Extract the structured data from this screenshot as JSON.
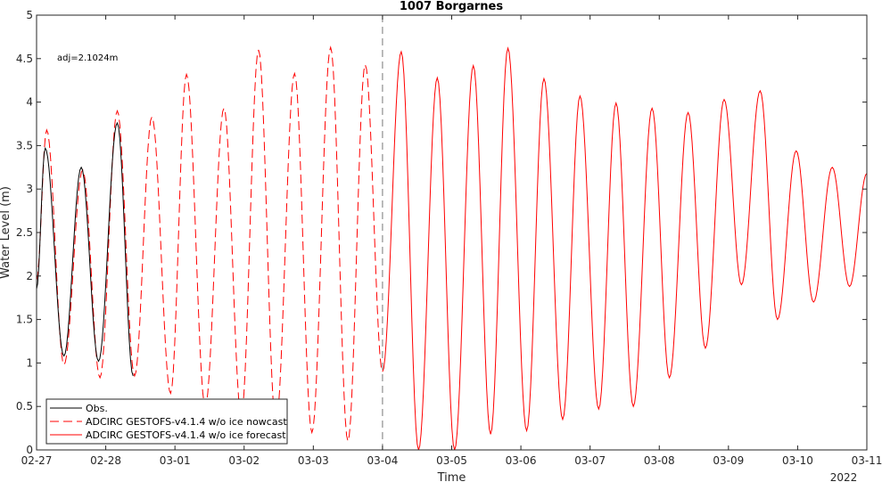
{
  "chart_data": {
    "type": "line",
    "title": "1007 Borgarnes",
    "xlabel": "Time",
    "ylabel": "Water Level (m)",
    "year_label": "2022",
    "annotation": "adj=2.1024m",
    "xlim": [
      "2022-02-27T00:00",
      "2022-03-11T00:00"
    ],
    "ylim": [
      0,
      5
    ],
    "yticks": [
      0,
      0.5,
      1,
      1.5,
      2,
      2.5,
      3,
      3.5,
      4,
      4.5,
      5
    ],
    "yticklabels": [
      "0",
      "0.5",
      "1",
      "1.5",
      "2",
      "2.5",
      "3",
      "3.5",
      "4",
      "4.5",
      "5"
    ],
    "xticks": [
      "02-27",
      "02-28",
      "03-01",
      "03-02",
      "03-03",
      "03-04",
      "03-05",
      "03-06",
      "03-07",
      "03-08",
      "03-09",
      "03-10",
      "03-11"
    ],
    "nowcast_forecast_divider": "2022-03-04T00:00",
    "legend_location": "bottom-left",
    "grid": false,
    "colors": {
      "obs": "#000000",
      "nowcast": "#ff0000",
      "forecast": "#ff0000"
    },
    "series": [
      {
        "name": "Obs.",
        "style": "solid",
        "points": [
          [
            "2022-02-27T00:00",
            1.85
          ],
          [
            "2022-02-27T03:00",
            3.47
          ],
          [
            "2022-02-27T09:30",
            1.08
          ],
          [
            "2022-02-27T15:30",
            3.25
          ],
          [
            "2022-02-27T21:30",
            1.02
          ],
          [
            "2022-02-28T04:00",
            3.76
          ],
          [
            "2022-02-28T09:30",
            0.85
          ]
        ]
      },
      {
        "name": "ADCIRC GESTOFS-v4.1.4 w/o ice nowcast",
        "style": "dashed",
        "points": [
          [
            "2022-02-27T00:00",
            1.95
          ],
          [
            "2022-02-27T03:30",
            3.68
          ],
          [
            "2022-02-27T09:30",
            0.98
          ],
          [
            "2022-02-27T16:00",
            3.22
          ],
          [
            "2022-02-27T22:00",
            0.83
          ],
          [
            "2022-02-28T04:00",
            3.9
          ],
          [
            "2022-02-28T10:00",
            0.85
          ],
          [
            "2022-02-28T16:00",
            3.83
          ],
          [
            "2022-02-28T22:30",
            0.65
          ],
          [
            "2022-03-01T04:00",
            4.32
          ],
          [
            "2022-03-01T10:30",
            0.5
          ],
          [
            "2022-03-01T17:00",
            3.93
          ],
          [
            "2022-03-01T23:00",
            0.4
          ],
          [
            "2022-03-02T05:00",
            4.6
          ],
          [
            "2022-03-02T11:00",
            0.3
          ],
          [
            "2022-03-02T17:30",
            4.33
          ],
          [
            "2022-03-02T23:30",
            0.2
          ],
          [
            "2022-03-03T06:00",
            4.63
          ],
          [
            "2022-03-03T12:00",
            0.1
          ],
          [
            "2022-03-03T18:00",
            4.43
          ],
          [
            "2022-03-04T00:00",
            0.9
          ]
        ]
      },
      {
        "name": "ADCIRC GESTOFS-v4.1.4 w/o ice forecast",
        "style": "solid",
        "points": [
          [
            "2022-03-04T00:00",
            0.9
          ],
          [
            "2022-03-04T06:30",
            4.58
          ],
          [
            "2022-03-04T12:30",
            0.0
          ],
          [
            "2022-03-04T19:00",
            4.28
          ],
          [
            "2022-03-05T01:00",
            0.0
          ],
          [
            "2022-03-05T07:30",
            4.42
          ],
          [
            "2022-03-05T13:30",
            0.18
          ],
          [
            "2022-03-05T19:30",
            4.62
          ],
          [
            "2022-03-06T02:00",
            0.22
          ],
          [
            "2022-03-06T08:00",
            4.27
          ],
          [
            "2022-03-06T14:30",
            0.35
          ],
          [
            "2022-03-06T20:30",
            4.07
          ],
          [
            "2022-03-07T03:00",
            0.47
          ],
          [
            "2022-03-07T09:00",
            3.99
          ],
          [
            "2022-03-07T15:00",
            0.5
          ],
          [
            "2022-03-07T21:30",
            3.93
          ],
          [
            "2022-03-08T03:30",
            0.83
          ],
          [
            "2022-03-08T10:00",
            3.88
          ],
          [
            "2022-03-08T16:00",
            1.17
          ],
          [
            "2022-03-08T22:30",
            4.03
          ],
          [
            "2022-03-09T04:30",
            1.9
          ],
          [
            "2022-03-09T11:00",
            4.13
          ],
          [
            "2022-03-09T17:00",
            1.5
          ],
          [
            "2022-03-09T23:30",
            3.44
          ],
          [
            "2022-03-10T05:30",
            1.7
          ],
          [
            "2022-03-10T12:00",
            3.25
          ],
          [
            "2022-03-10T18:00",
            1.88
          ],
          [
            "2022-03-11T00:00",
            3.18
          ]
        ]
      }
    ]
  }
}
